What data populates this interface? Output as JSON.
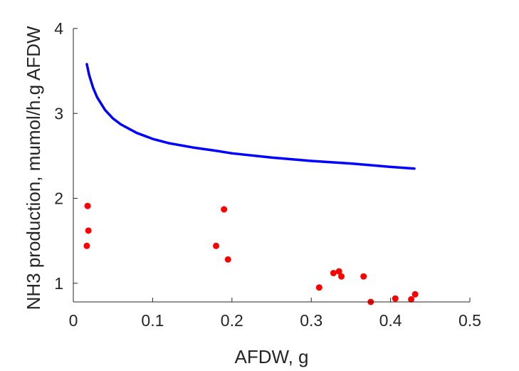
{
  "chart_data": {
    "type": "scatter",
    "title": "",
    "xlabel": "AFDW, g",
    "ylabel": "NH3 production, mumol/h.g AFDW",
    "xlim": [
      0,
      0.5
    ],
    "ylim": [
      0.78,
      4
    ],
    "grid": false,
    "legend": "none",
    "x_ticks": [
      "0",
      "0.1",
      "0.2",
      "0.3",
      "0.4",
      "0.5"
    ],
    "y_ticks": [
      "1",
      "2",
      "3",
      "4"
    ],
    "series": [
      {
        "kind": "line",
        "color": "#0000ff",
        "x": [
          0.017,
          0.02,
          0.025,
          0.03,
          0.04,
          0.05,
          0.06,
          0.08,
          0.1,
          0.12,
          0.15,
          0.18,
          0.2,
          0.25,
          0.3,
          0.35,
          0.4,
          0.43
        ],
        "y": [
          3.58,
          3.45,
          3.3,
          3.19,
          3.04,
          2.94,
          2.87,
          2.77,
          2.7,
          2.65,
          2.6,
          2.56,
          2.53,
          2.48,
          2.44,
          2.41,
          2.37,
          2.35
        ]
      },
      {
        "kind": "scatter",
        "color": "#ff0000",
        "x": [
          0.017,
          0.018,
          0.019,
          0.18,
          0.19,
          0.195,
          0.31,
          0.328,
          0.335,
          0.338,
          0.366,
          0.375,
          0.406,
          0.426,
          0.431
        ],
        "y": [
          1.44,
          1.91,
          1.62,
          1.44,
          1.87,
          1.28,
          0.95,
          1.12,
          1.14,
          1.08,
          1.08,
          0.78,
          0.82,
          0.81,
          0.87
        ]
      }
    ]
  }
}
